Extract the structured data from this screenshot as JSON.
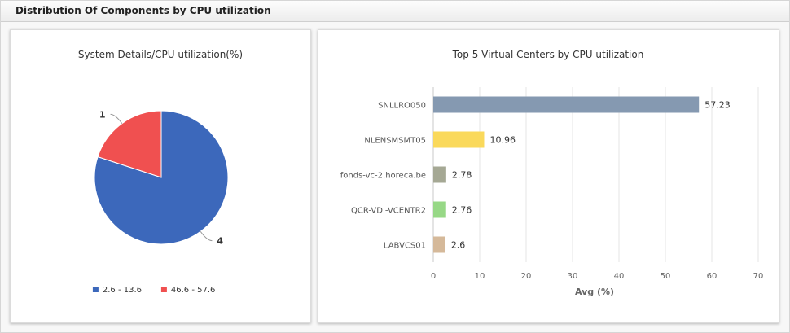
{
  "panel": {
    "title": "Distribution Of Components by CPU utilization"
  },
  "chart_data": [
    {
      "type": "pie",
      "title": "System Details/CPU utilization(%)",
      "slices": [
        {
          "label": "1",
          "value": 1,
          "color": "#f05050",
          "legend": "46.6 - 57.6"
        },
        {
          "label": "4",
          "value": 4,
          "color": "#3c68bb",
          "legend": "2.6 - 13.6"
        }
      ],
      "legend_order": [
        1,
        0
      ],
      "legend_placement": "bottom"
    },
    {
      "type": "bar",
      "orientation": "horizontal",
      "title": "Top 5 Virtual Centers by CPU utilization",
      "categories": [
        "SNLLRO050",
        "NLENSMSMT05",
        "fonds-vc-2.horeca.be",
        "QCR-VDI-VCENTR2",
        "LABVCS01"
      ],
      "values": [
        57.23,
        10.96,
        2.78,
        2.76,
        2.6
      ],
      "colors": [
        "#8599b1",
        "#fad95b",
        "#a5a894",
        "#97d886",
        "#d5b99a"
      ],
      "xlabel": "Avg (%)",
      "xlim": [
        0,
        70
      ],
      "xticks": [
        0,
        10,
        20,
        30,
        40,
        50,
        60,
        70
      ],
      "grid": true
    }
  ]
}
